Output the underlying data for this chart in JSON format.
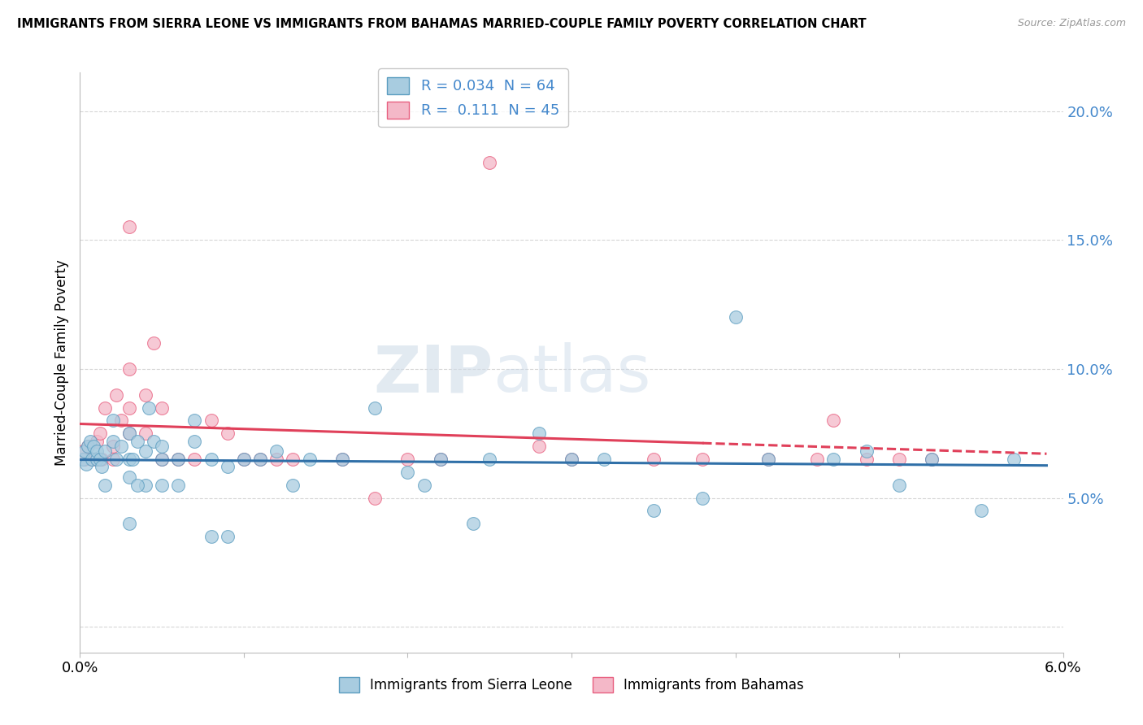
{
  "title": "IMMIGRANTS FROM SIERRA LEONE VS IMMIGRANTS FROM BAHAMAS MARRIED-COUPLE FAMILY POVERTY CORRELATION CHART",
  "source": "Source: ZipAtlas.com",
  "ylabel": "Married-Couple Family Poverty",
  "xlabel_legend1": "Immigrants from Sierra Leone",
  "xlabel_legend2": "Immigrants from Bahamas",
  "watermark_left": "ZIP",
  "watermark_right": "atlas",
  "xlim": [
    0.0,
    0.06
  ],
  "ylim": [
    -0.01,
    0.215
  ],
  "yticks": [
    0.0,
    0.05,
    0.1,
    0.15,
    0.2
  ],
  "yticklabels": [
    "",
    "5.0%",
    "10.0%",
    "15.0%",
    "20.0%"
  ],
  "xtick_left": "0.0%",
  "xtick_right": "6.0%",
  "R_blue": 0.034,
  "N_blue": 64,
  "R_pink": 0.111,
  "N_pink": 45,
  "color_blue": "#a8cce0",
  "color_pink": "#f4b8c8",
  "edge_blue": "#5b9dc0",
  "edge_pink": "#e86080",
  "line_blue": "#3070a8",
  "line_pink": "#e0405a",
  "grid_color": "#cccccc",
  "blue_x": [
    0.0002,
    0.0003,
    0.0004,
    0.0005,
    0.0006,
    0.0007,
    0.0008,
    0.001,
    0.001,
    0.0012,
    0.0013,
    0.0015,
    0.0015,
    0.002,
    0.002,
    0.0022,
    0.0025,
    0.003,
    0.003,
    0.003,
    0.0032,
    0.0035,
    0.004,
    0.004,
    0.0042,
    0.0045,
    0.005,
    0.005,
    0.005,
    0.006,
    0.006,
    0.007,
    0.007,
    0.008,
    0.009,
    0.01,
    0.011,
    0.012,
    0.013,
    0.014,
    0.016,
    0.018,
    0.02,
    0.021,
    0.022,
    0.024,
    0.025,
    0.028,
    0.03,
    0.032,
    0.035,
    0.038,
    0.04,
    0.042,
    0.046,
    0.048,
    0.05,
    0.052,
    0.055,
    0.057,
    0.003,
    0.0035,
    0.008,
    0.009
  ],
  "blue_y": [
    0.065,
    0.068,
    0.063,
    0.07,
    0.072,
    0.065,
    0.07,
    0.065,
    0.068,
    0.065,
    0.062,
    0.068,
    0.055,
    0.072,
    0.08,
    0.065,
    0.07,
    0.075,
    0.065,
    0.058,
    0.065,
    0.072,
    0.068,
    0.055,
    0.085,
    0.072,
    0.065,
    0.055,
    0.07,
    0.065,
    0.055,
    0.072,
    0.08,
    0.065,
    0.062,
    0.065,
    0.065,
    0.068,
    0.055,
    0.065,
    0.065,
    0.085,
    0.06,
    0.055,
    0.065,
    0.04,
    0.065,
    0.075,
    0.065,
    0.065,
    0.045,
    0.05,
    0.12,
    0.065,
    0.065,
    0.068,
    0.055,
    0.065,
    0.045,
    0.065,
    0.04,
    0.055,
    0.035,
    0.035
  ],
  "pink_x": [
    0.0002,
    0.0003,
    0.0005,
    0.0007,
    0.001,
    0.001,
    0.0012,
    0.0013,
    0.0015,
    0.002,
    0.002,
    0.0022,
    0.0025,
    0.003,
    0.003,
    0.003,
    0.004,
    0.004,
    0.0045,
    0.005,
    0.006,
    0.007,
    0.008,
    0.01,
    0.011,
    0.013,
    0.016,
    0.018,
    0.02,
    0.025,
    0.028,
    0.03,
    0.035,
    0.038,
    0.042,
    0.045,
    0.046,
    0.048,
    0.05,
    0.052,
    0.003,
    0.005,
    0.009,
    0.012,
    0.022
  ],
  "pink_y": [
    0.068,
    0.065,
    0.07,
    0.065,
    0.072,
    0.065,
    0.075,
    0.065,
    0.085,
    0.07,
    0.065,
    0.09,
    0.08,
    0.1,
    0.085,
    0.075,
    0.075,
    0.09,
    0.11,
    0.085,
    0.065,
    0.065,
    0.08,
    0.065,
    0.065,
    0.065,
    0.065,
    0.05,
    0.065,
    0.18,
    0.07,
    0.065,
    0.065,
    0.065,
    0.065,
    0.065,
    0.08,
    0.065,
    0.065,
    0.065,
    0.155,
    0.065,
    0.075,
    0.065,
    0.065
  ]
}
